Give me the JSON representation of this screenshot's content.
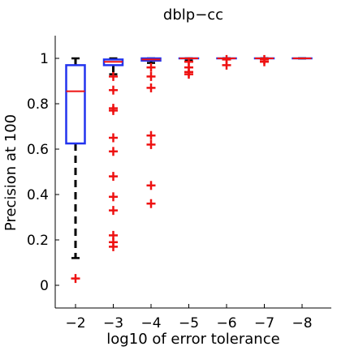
{
  "chart_data": {
    "type": "box",
    "title": "dblp−cc",
    "xlabel": "log10 of error tolerance",
    "ylabel": "Precision at 100",
    "categories": [
      "−2",
      "−3",
      "−4",
      "−5",
      "−6",
      "−7",
      "−8"
    ],
    "ylim": [
      -0.1,
      1.1
    ],
    "yticks": [
      0,
      0.2,
      0.4,
      0.6,
      0.8,
      1
    ],
    "ytick_labels": [
      "0",
      "0.2",
      "0.4",
      "0.6",
      "0.8",
      "1"
    ],
    "grid": false,
    "boxes": [
      {
        "category": "−2",
        "whisker_low": 0.12,
        "q1": 0.625,
        "median": 0.855,
        "q3": 0.97,
        "whisker_high": 1.0,
        "outliers": [
          0.03
        ]
      },
      {
        "category": "−3",
        "whisker_low": 0.93,
        "q1": 0.97,
        "median": 0.985,
        "q3": 0.995,
        "whisker_high": 1.0,
        "outliers": [
          0.92,
          0.86,
          0.78,
          0.77,
          0.65,
          0.59,
          0.48,
          0.39,
          0.33,
          0.22,
          0.19,
          0.17
        ]
      },
      {
        "category": "−4",
        "whisker_low": 0.98,
        "q1": 0.99,
        "median": 0.995,
        "q3": 1.0,
        "whisker_high": 1.0,
        "outliers": [
          0.96,
          0.92,
          0.87,
          0.66,
          0.62,
          0.44,
          0.36
        ]
      },
      {
        "category": "−5",
        "whisker_low": 0.99,
        "q1": 1.0,
        "median": 1.0,
        "q3": 1.0,
        "whisker_high": 1.0,
        "outliers": [
          0.985,
          0.96,
          0.94,
          0.93
        ]
      },
      {
        "category": "−6",
        "whisker_low": 1.0,
        "q1": 1.0,
        "median": 1.0,
        "q3": 1.0,
        "whisker_high": 1.0,
        "outliers": [
          0.995,
          0.97
        ]
      },
      {
        "category": "−7",
        "whisker_low": 1.0,
        "q1": 1.0,
        "median": 1.0,
        "q3": 1.0,
        "whisker_high": 1.0,
        "outliers": [
          0.995,
          0.985
        ]
      },
      {
        "category": "−8",
        "whisker_low": 1.0,
        "q1": 1.0,
        "median": 1.0,
        "q3": 1.0,
        "whisker_high": 1.0,
        "outliers": []
      }
    ],
    "colors": {
      "box": "#2233ee",
      "median": "#ee1111",
      "whisker": "#000000",
      "outlier": "#ee1111"
    }
  }
}
